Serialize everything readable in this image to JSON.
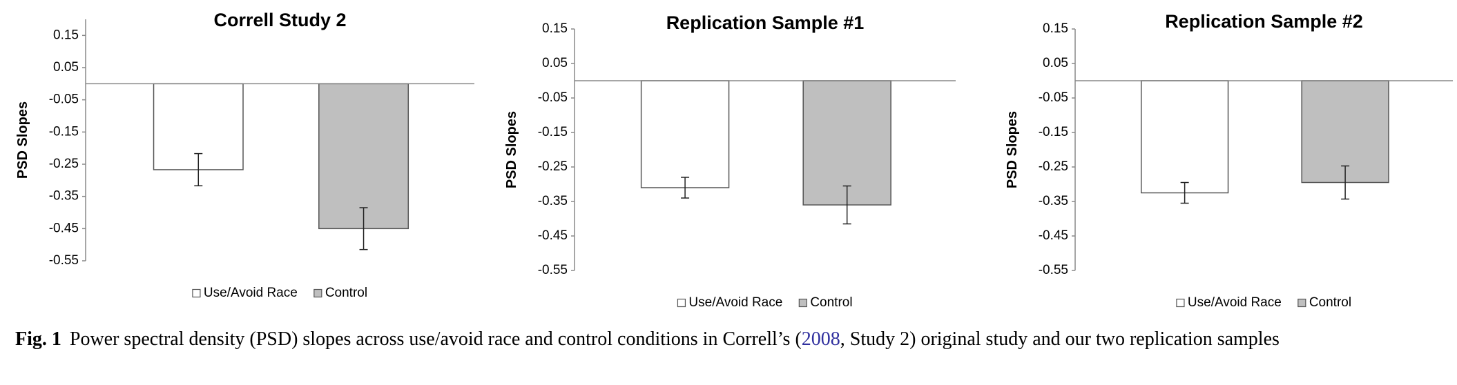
{
  "chart_data": [
    {
      "type": "bar",
      "title": "Correll Study 2",
      "ylabel": "PSD Slopes",
      "series": [
        {
          "name": "Use/Avoid Race",
          "color": "#ffffff",
          "values": [
            -0.267
          ],
          "errors": [
            0.05
          ]
        },
        {
          "name": "Control",
          "color": "#bfbfbf",
          "values": [
            -0.45
          ],
          "errors": [
            0.065
          ]
        }
      ],
      "ylim": [
        -0.55,
        0.2
      ],
      "yticks": [
        0.15,
        0.05,
        -0.05,
        -0.15,
        -0.25,
        -0.35,
        -0.45,
        -0.55
      ],
      "grid": false
    },
    {
      "type": "bar",
      "title": "Replication Sample #1",
      "ylabel": "PSD Slopes",
      "series": [
        {
          "name": "Use/Avoid Race",
          "color": "#ffffff",
          "values": [
            -0.31
          ],
          "errors": [
            0.03
          ]
        },
        {
          "name": "Control",
          "color": "#bfbfbf",
          "values": [
            -0.36
          ],
          "errors": [
            0.055
          ]
        }
      ],
      "ylim": [
        -0.55,
        0.15
      ],
      "yticks": [
        0.15,
        0.05,
        -0.05,
        -0.15,
        -0.25,
        -0.35,
        -0.45,
        -0.55
      ],
      "grid": false
    },
    {
      "type": "bar",
      "title": "Replication Sample #2",
      "ylabel": "PSD Slopes",
      "series": [
        {
          "name": "Use/Avoid Race",
          "color": "#ffffff",
          "values": [
            -0.325
          ],
          "errors": [
            0.03
          ]
        },
        {
          "name": "Control",
          "color": "#bfbfbf",
          "values": [
            -0.295
          ],
          "errors": [
            0.048
          ]
        }
      ],
      "ylim": [
        -0.55,
        0.15
      ],
      "yticks": [
        0.15,
        0.05,
        -0.05,
        -0.15,
        -0.25,
        -0.35,
        -0.45,
        -0.55
      ],
      "grid": false
    }
  ],
  "caption": {
    "label": "Fig. 1",
    "text_before": "Power spectral density (PSD) slopes across use/avoid race and control conditions in Correll’s (",
    "link": "2008",
    "text_after": ", Study 2) original study and our two replication samples"
  }
}
